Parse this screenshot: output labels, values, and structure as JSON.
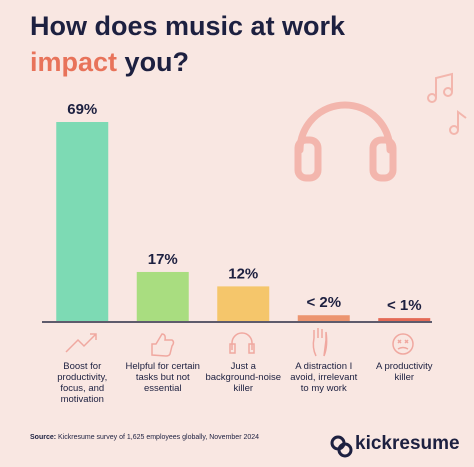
{
  "chart_data": {
    "type": "bar",
    "title": [
      "How does music at work",
      "impact",
      "you?"
    ],
    "title_highlight_color": "#e8735a",
    "categories": [
      "Boost for productivity, focus, and motivation",
      "Helpful for certain tasks but not essential",
      "Just a background-noise killer",
      "A distraction I avoid, irrelevant to my work",
      "A productivity killer"
    ],
    "values": [
      69,
      17,
      12,
      2,
      1
    ],
    "value_labels": [
      "69%",
      "17%",
      "12%",
      "< 2%",
      "< 1%"
    ],
    "colors": [
      "#7ddab4",
      "#a9dd80",
      "#f5c66b",
      "#ec9570",
      "#e46a56"
    ],
    "source_label": "Source:",
    "source": "Kickresume survey of 1,625 employees globally, November 2024",
    "brand": "kickresume"
  }
}
